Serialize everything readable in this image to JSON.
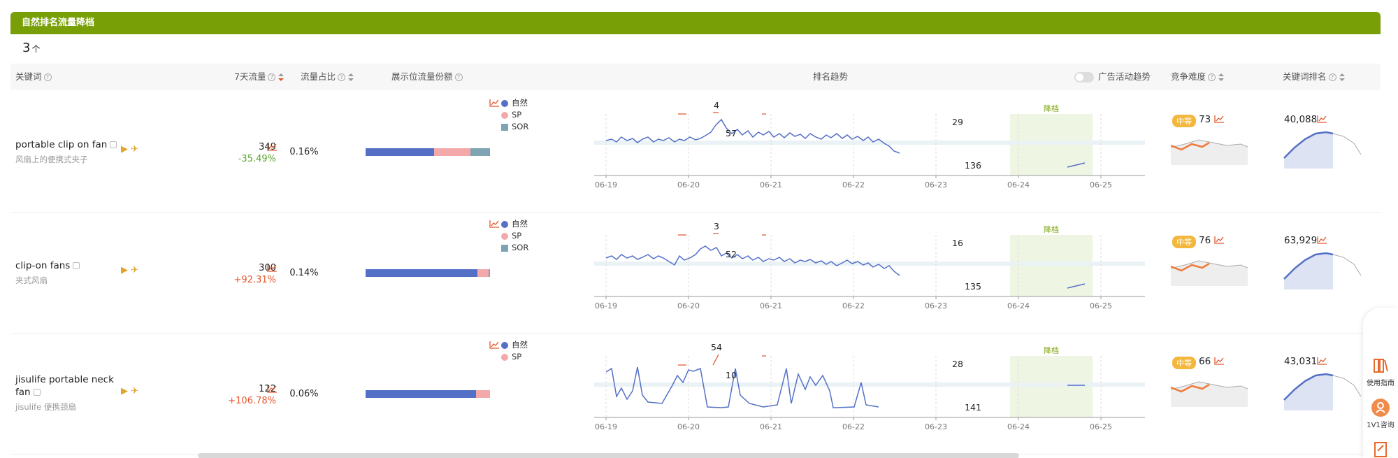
{
  "section_title": "自然排名流量降档",
  "count": {
    "value": "3",
    "unit": "个"
  },
  "headers": {
    "keyword": "关键词",
    "traffic7d": "7天流量",
    "traffic_share": "流量占比",
    "placement_share": "展示位流量份额",
    "rank_trend": "排名趋势",
    "ad_toggle": "广告活动趋势",
    "difficulty": "竞争难度",
    "kw_rank": "关键词排名"
  },
  "legend_labels": {
    "organic": "自然",
    "sp": "SP",
    "sor": "SOR"
  },
  "colors": {
    "organic": "#5470c6",
    "sp": "#f3a9a9",
    "sor": "#7ea4b3",
    "accent": "#78a006",
    "downgrade_zone": "#eef5e3"
  },
  "x_dates": [
    "06-19",
    "06-20",
    "06-21",
    "06-22",
    "06-23",
    "06-24",
    "06-25"
  ],
  "downgrade_label": "降档",
  "rows": [
    {
      "keyword": "portable clip on fan",
      "keyword_cn": "风扇上的便携式夹子",
      "traffic": "349",
      "change": "-35.49%",
      "change_dir": "down",
      "share": "0.16%",
      "bar": {
        "organic": 55,
        "sp": 29,
        "sor": 16
      },
      "legend": [
        "organic",
        "sp",
        "sor"
      ],
      "chart_labels": [
        "4",
        "57",
        "29",
        "136"
      ],
      "difficulty_tag": "中等",
      "difficulty": "73",
      "rank": "40,088"
    },
    {
      "keyword": "clip-on fans",
      "keyword_cn": "夹式风扇",
      "traffic": "300",
      "change": "+92.31%",
      "change_dir": "up",
      "share": "0.14%",
      "bar": {
        "organic": 90,
        "sp": 9,
        "sor": 1
      },
      "legend": [
        "organic",
        "sp",
        "sor"
      ],
      "chart_labels": [
        "3",
        "52",
        "16",
        "135"
      ],
      "difficulty_tag": "中等",
      "difficulty": "76",
      "rank": "63,929"
    },
    {
      "keyword": "jisulife portable neck fan",
      "keyword_cn": "jisulife 便携颈扇",
      "traffic": "122",
      "change": "+106.78%",
      "change_dir": "up",
      "share": "0.06%",
      "bar": {
        "organic": 89,
        "sp": 11,
        "sor": 0
      },
      "legend": [
        "organic",
        "sp"
      ],
      "chart_labels": [
        "54",
        "10",
        "28",
        "141"
      ],
      "difficulty_tag": "中等",
      "difficulty": "66",
      "rank": "43,031"
    }
  ],
  "sidebar": {
    "guide": "使用指南",
    "consult": "1V1咨询"
  }
}
